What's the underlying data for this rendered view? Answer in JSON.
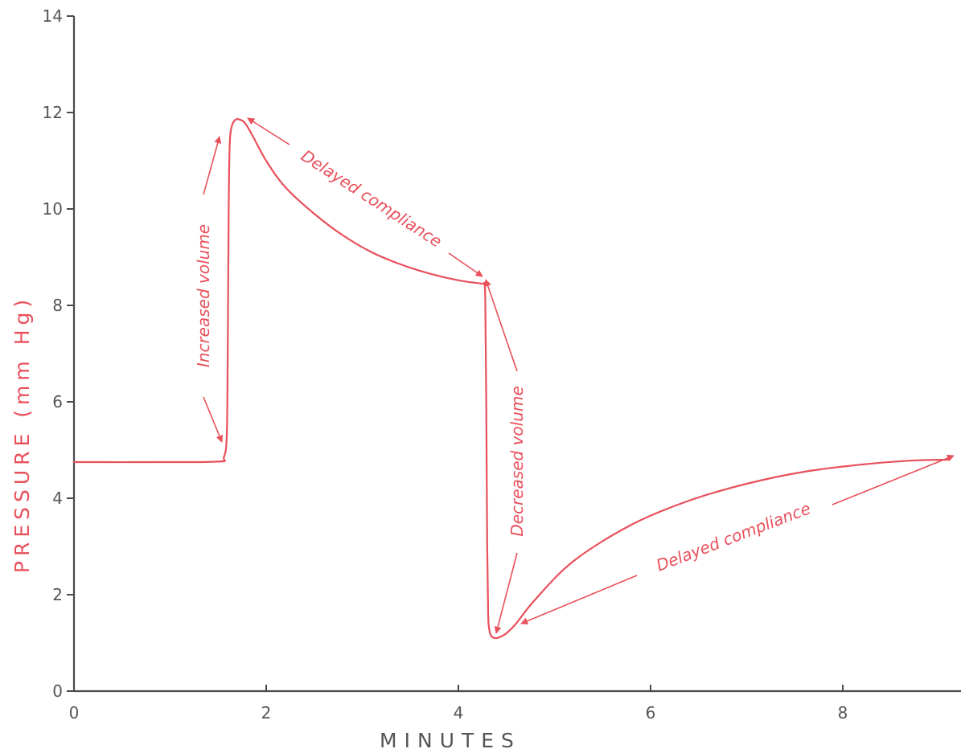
{
  "chart_data": {
    "type": "line",
    "xlabel": "MINUTES",
    "ylabel": "PRESSURE   (mm Hg)",
    "xlim": [
      0,
      9.2
    ],
    "ylim": [
      0,
      14
    ],
    "xticks": [
      "0",
      "2",
      "4",
      "6",
      "8"
    ],
    "yticks": [
      "0",
      "2",
      "4",
      "6",
      "8",
      "10",
      "12",
      "14"
    ],
    "grid": false,
    "series": [
      {
        "x": [
          0,
          0.8,
          1.5,
          1.56,
          1.59,
          1.6,
          1.61,
          1.62,
          1.64,
          1.68,
          1.73,
          1.78,
          1.85,
          2.0,
          2.2,
          2.5,
          2.8,
          3.1,
          3.4,
          3.7,
          4.0,
          4.25,
          4.27,
          4.28,
          4.29,
          4.3,
          4.31,
          4.32,
          4.34,
          4.38,
          4.43,
          4.5,
          4.6,
          4.8,
          5.2,
          5.8,
          6.4,
          7.0,
          7.6,
          8.2,
          8.7,
          9.1
        ],
        "y": [
          4.75,
          4.75,
          4.76,
          4.85,
          5.3,
          7.0,
          10.0,
          11.3,
          11.7,
          11.85,
          11.85,
          11.78,
          11.55,
          11.0,
          10.45,
          9.9,
          9.45,
          9.1,
          8.85,
          8.66,
          8.52,
          8.45,
          8.45,
          8.1,
          6.0,
          3.0,
          1.6,
          1.3,
          1.15,
          1.1,
          1.12,
          1.2,
          1.4,
          1.9,
          2.7,
          3.45,
          3.95,
          4.3,
          4.55,
          4.7,
          4.78,
          4.8
        ]
      }
    ],
    "annotations": [
      {
        "text": "Increased volume"
      },
      {
        "text": "Delayed compliance"
      },
      {
        "text": "Decreased volume"
      },
      {
        "text": "Delayed compliance"
      }
    ]
  }
}
